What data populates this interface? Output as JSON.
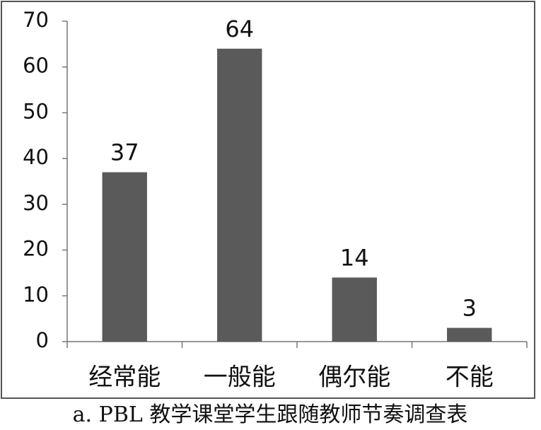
{
  "chart_data": {
    "type": "bar",
    "caption": "a. PBL 教学课堂学生跟随教师节奏调查表",
    "categories": [
      "经常能",
      "一般能",
      "偶尔能",
      "不能"
    ],
    "values": [
      37,
      64,
      14,
      3
    ],
    "color": "#5a5a5a",
    "ylim": [
      0,
      70
    ],
    "yticks": [
      0,
      10,
      20,
      30,
      40,
      50,
      60,
      70
    ],
    "grid": false
  }
}
